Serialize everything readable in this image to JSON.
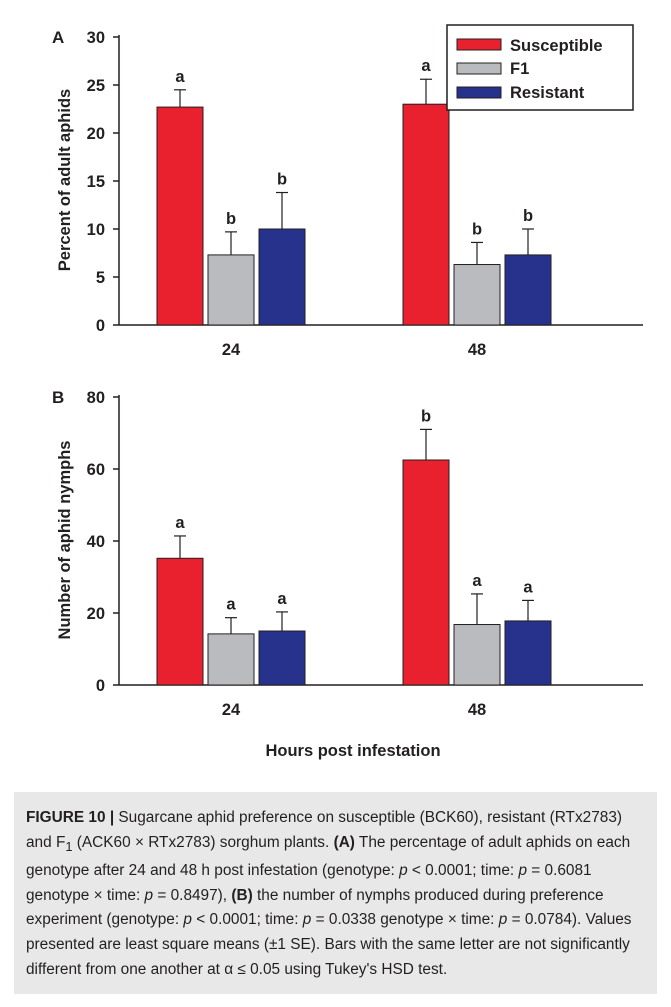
{
  "chart_data": [
    {
      "panel": "A",
      "type": "bar",
      "categories": [
        "24",
        "48"
      ],
      "series": [
        {
          "name": "Susceptible",
          "values": [
            22.7,
            23.0
          ],
          "errors": [
            1.8,
            2.6
          ],
          "letters": [
            "a",
            "a"
          ]
        },
        {
          "name": "F1",
          "values": [
            7.3,
            6.3
          ],
          "errors": [
            2.4,
            2.3
          ],
          "letters": [
            "b",
            "b"
          ]
        },
        {
          "name": "Resistant",
          "values": [
            10.0,
            7.3
          ],
          "errors": [
            3.8,
            2.7
          ],
          "letters": [
            "b",
            "b"
          ]
        }
      ],
      "ylabel": "Percent of adult aphids",
      "ylim": [
        0,
        30
      ],
      "yticks": [
        "0",
        "5",
        "10",
        "15",
        "20",
        "25",
        "30"
      ],
      "legend": "top-right",
      "grid": false
    },
    {
      "panel": "B",
      "type": "bar",
      "categories": [
        "24",
        "48"
      ],
      "series": [
        {
          "name": "Susceptible",
          "values": [
            35.2,
            62.5
          ],
          "errors": [
            6.2,
            8.5
          ],
          "letters": [
            "a",
            "b"
          ]
        },
        {
          "name": "F1",
          "values": [
            14.2,
            16.8
          ],
          "errors": [
            4.5,
            8.5
          ],
          "letters": [
            "a",
            "a"
          ]
        },
        {
          "name": "Resistant",
          "values": [
            15.0,
            17.8
          ],
          "errors": [
            5.3,
            5.7
          ],
          "letters": [
            "a",
            "a"
          ]
        }
      ],
      "ylabel": "Number of aphid nymphs",
      "xlabel": "Hours post infestation",
      "ylim": [
        0,
        80
      ],
      "yticks": [
        "0",
        "20",
        "40",
        "60",
        "80"
      ],
      "grid": false
    }
  ],
  "colors": {
    "Susceptible": "#e9212e",
    "F1": "#b9bbbe",
    "Resistant": "#27328c"
  },
  "caption": {
    "figure_label": "FIGURE 10 |",
    "text_1": " Sugarcane aphid preference on susceptible (BCK60), resistant (RTx2783) and F",
    "text_1_sub": "1",
    "text_2": " (ACK60 × RTx2783) sorghum plants. ",
    "label_a": "(A)",
    "text_3": " The percentage of adult aphids on each genotype after 24 and 48 h post infestation (genotype: ",
    "p1": "p",
    "text_4": " < 0.0001; time: ",
    "p2": "p",
    "text_5": " = 0.6081 genotype × time: ",
    "p3": "p",
    "text_6": " = 0.8497), ",
    "label_b": "(B)",
    "text_7": " the number of nymphs produced during preference experiment (genotype: ",
    "p4": "p",
    "text_8": " < 0.0001; time: ",
    "p5": "p",
    "text_9": " = 0.0338 genotype × time: ",
    "p6": "p",
    "text_10": " = 0.0784). Values presented are least square means (±1 SE). Bars with the same letter are not significantly different from one another at α ≤ 0.05 using Tukey's HSD test."
  }
}
